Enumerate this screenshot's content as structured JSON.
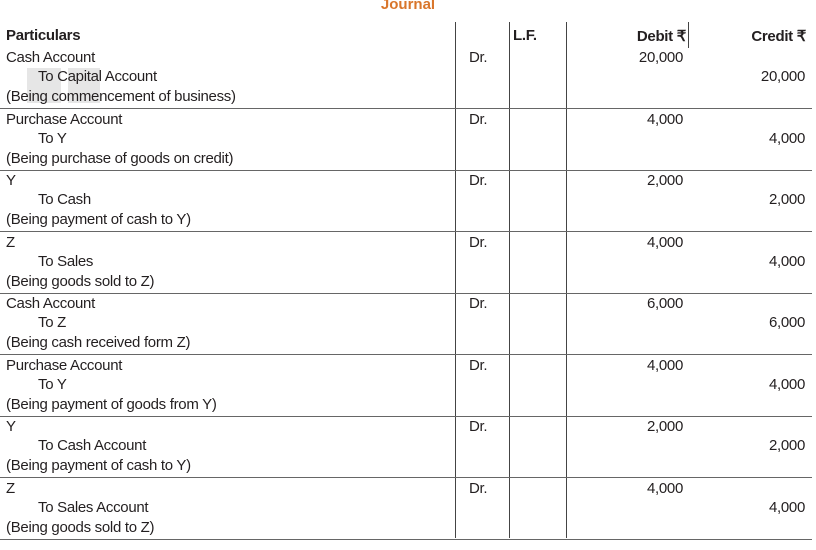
{
  "title": "Journal",
  "headers": {
    "particulars": "Particulars",
    "lf": "L.F.",
    "debit": "Debit ₹",
    "credit": "Credit ₹"
  },
  "entries": [
    {
      "debit_account": "Cash Account",
      "dr": "Dr.",
      "credit_account": "To Capital Account",
      "narration": "(Being commencement of business)",
      "debit": "20,000",
      "credit": "20,000"
    },
    {
      "debit_account": "Purchase Account",
      "dr": "Dr.",
      "credit_account": "To Y",
      "narration": "(Being purchase of goods on credit)",
      "debit": "4,000",
      "credit": "4,000"
    },
    {
      "debit_account": "Y",
      "dr": "Dr.",
      "credit_account": "To Cash",
      "narration": "(Being payment of cash to Y)",
      "debit": "2,000",
      "credit": "2,000"
    },
    {
      "debit_account": "Z",
      "dr": "Dr.",
      "credit_account": "To Sales",
      "narration": "(Being goods sold to Z)",
      "debit": "4,000",
      "credit": "4,000"
    },
    {
      "debit_account": "Cash Account",
      "dr": "Dr.",
      "credit_account": "To Z",
      "narration": "(Being cash received form Z)",
      "debit": "6,000",
      "credit": "6,000"
    },
    {
      "debit_account": "Purchase Account",
      "dr": "Dr.",
      "credit_account": "To Y",
      "narration": "(Being payment of goods from Y)",
      "debit": "4,000",
      "credit": "4,000"
    },
    {
      "debit_account": "Y",
      "dr": "Dr.",
      "credit_account": "To Cash Account",
      "narration": "(Being payment of cash to Y)",
      "debit": "2,000",
      "credit": "2,000"
    },
    {
      "debit_account": "Z",
      "dr": "Dr.",
      "credit_account": "To Sales Account",
      "narration": "(Being goods sold to Z)",
      "debit": "4,000",
      "credit": "4,000"
    }
  ]
}
